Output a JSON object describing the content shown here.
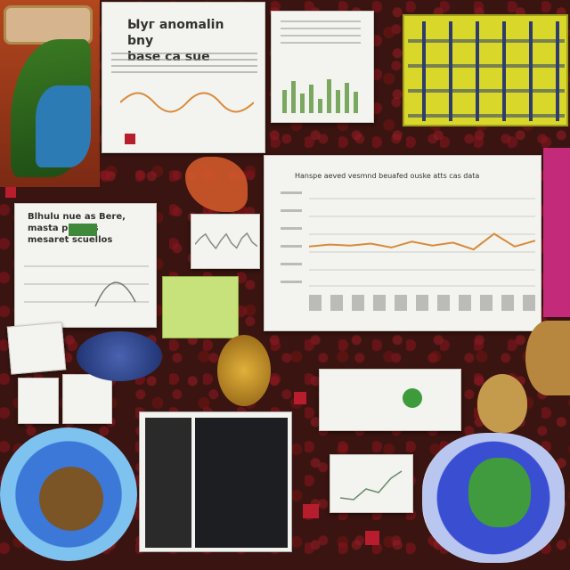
{
  "scene": {
    "top_card_title": "Ыуг anomalin bny\nbase ca sue",
    "left_card_title": "Blhulu nue as Bere,\nmasta pnalfvs\nmesaret scuellos",
    "main_chart_title": "Hanspe aeved vesmnd beuafed ouske atts cas data"
  },
  "colors": {
    "background": "#3a1410",
    "accent_red": "#b81d2e",
    "orange_line": "#d88b3a",
    "yellow_board": "#d9d82a"
  },
  "main_chart": {
    "type": "line",
    "y_range": [
      0,
      1
    ],
    "values": [
      0.42,
      0.44,
      0.43,
      0.45,
      0.41,
      0.47,
      0.43,
      0.46,
      0.39,
      0.55,
      0.42,
      0.48
    ]
  },
  "small_chart": {
    "type": "line",
    "values": [
      0.45,
      0.6,
      0.7,
      0.5,
      0.35,
      0.55,
      0.7,
      0.48,
      0.36,
      0.6,
      0.72,
      0.5,
      0.4
    ]
  }
}
